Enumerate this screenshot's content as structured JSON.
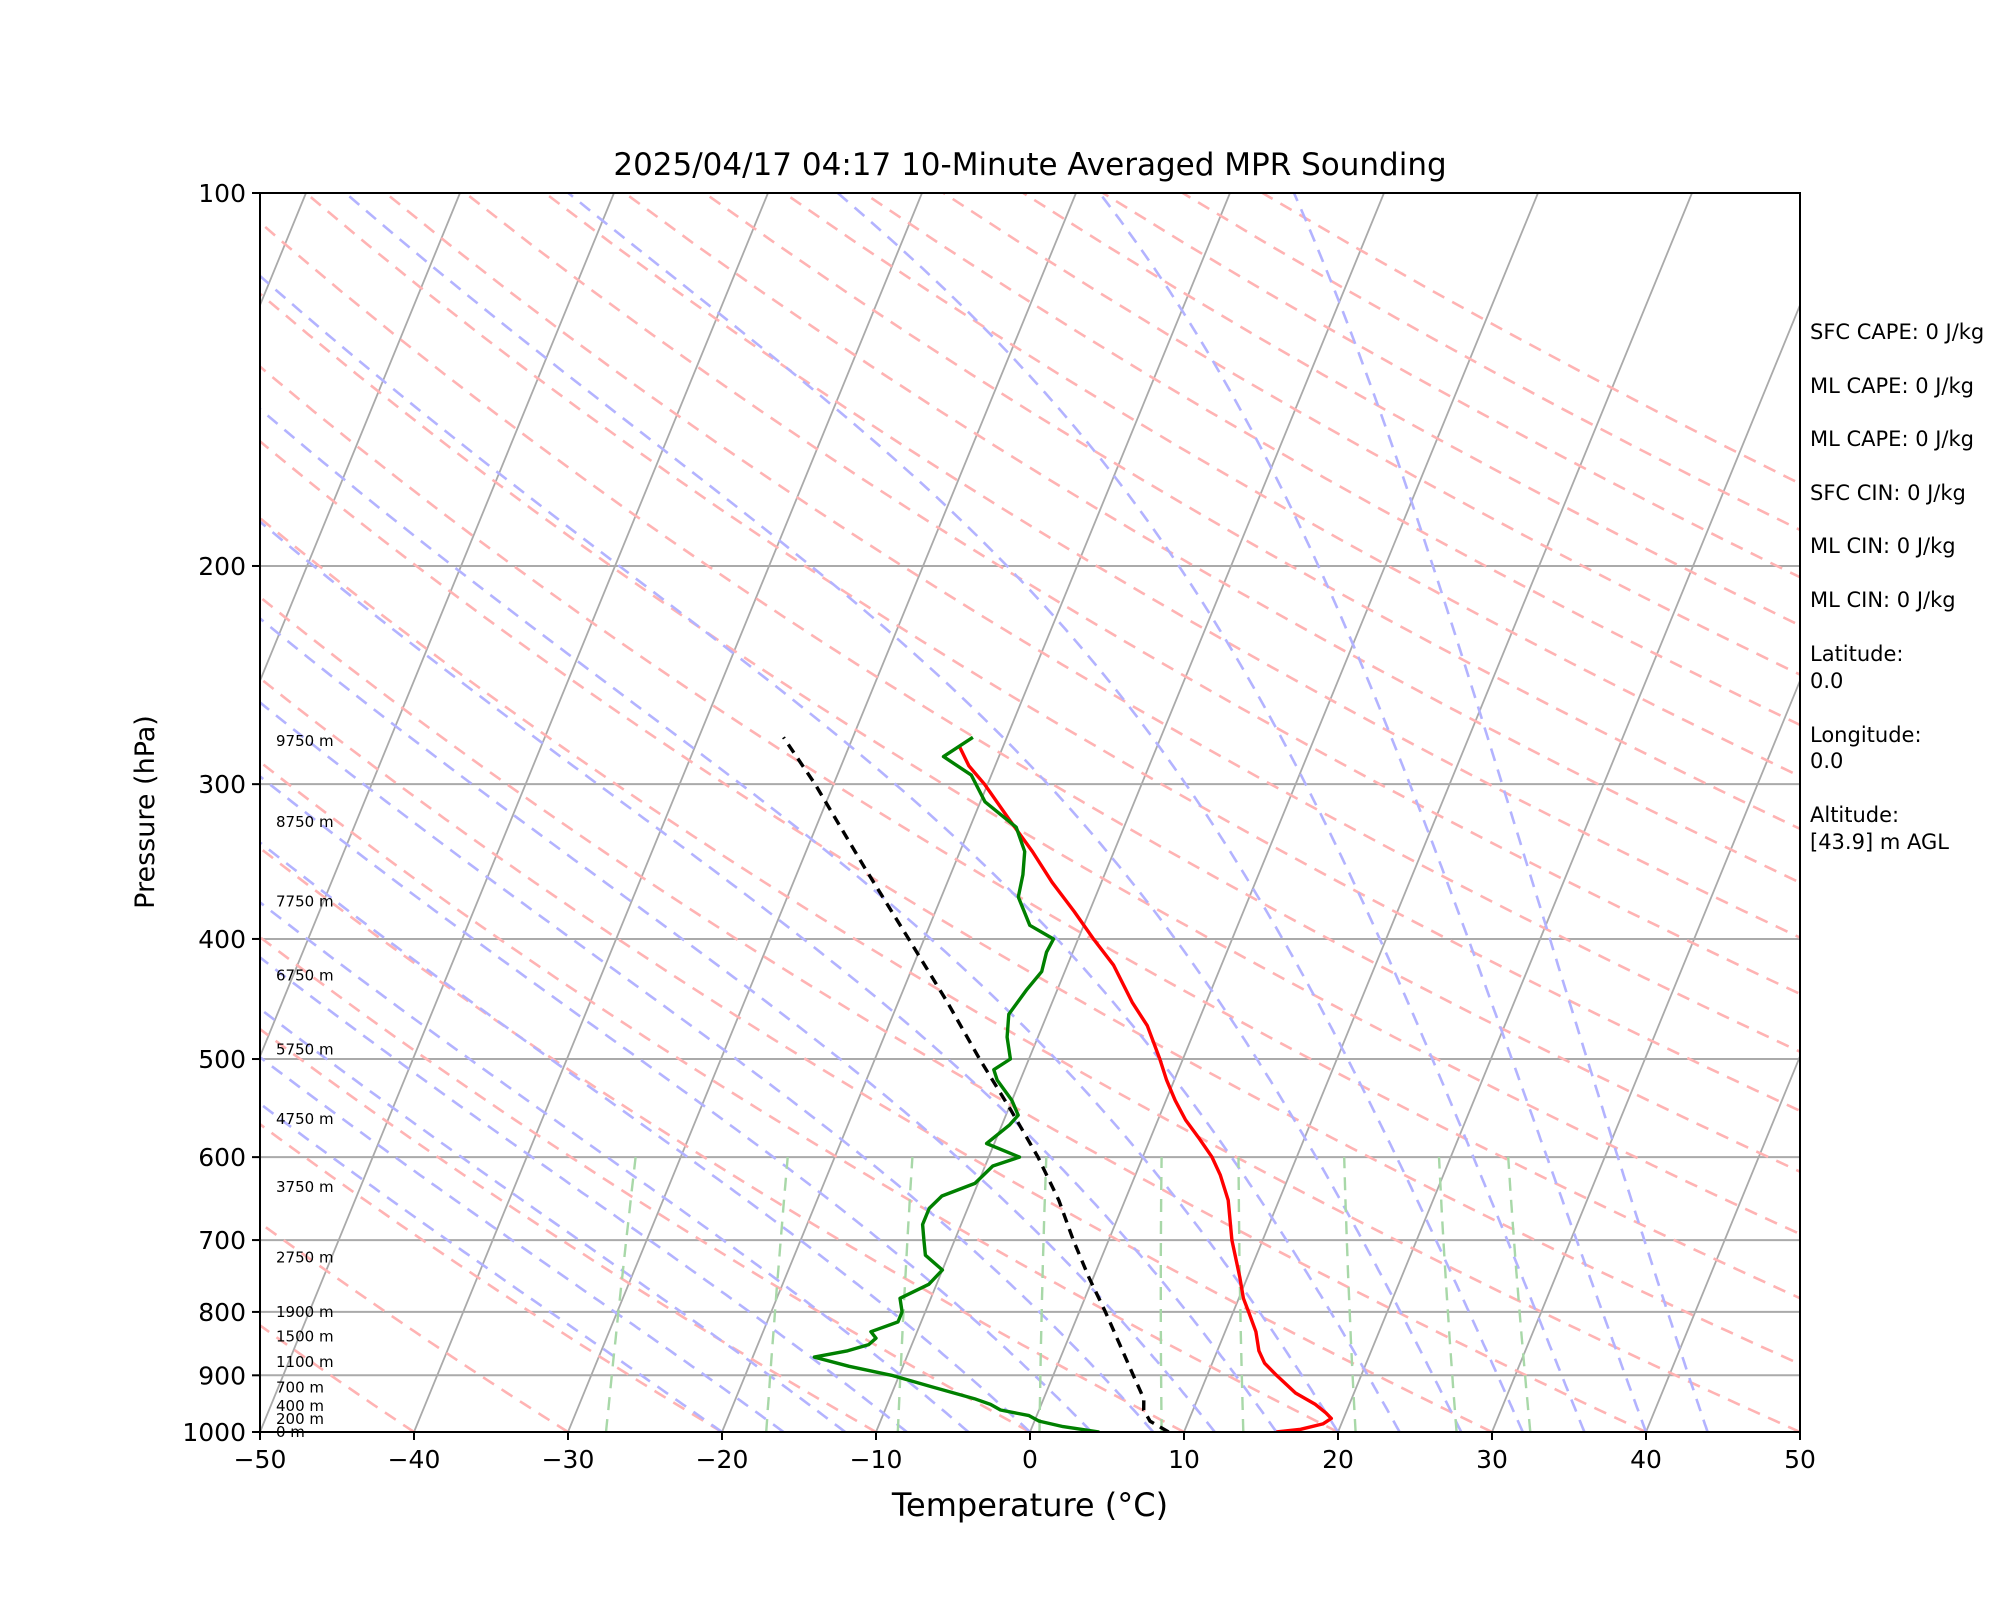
{
  "chart_data": {
    "type": "skew-t",
    "title": "2025/04/17 04:17 10-Minute Averaged MPR Sounding",
    "xlabel": "Temperature (°C)",
    "ylabel": "Pressure (hPa)",
    "xlim": [
      -50,
      50
    ],
    "ylim": [
      1000,
      100
    ],
    "y_scale": "log",
    "x_ticks": [
      "−50",
      "−40",
      "−30",
      "−20",
      "−10",
      "0",
      "10",
      "20",
      "30",
      "40",
      "50"
    ],
    "y_ticks": [
      100,
      200,
      300,
      400,
      500,
      600,
      700,
      800,
      900,
      1000
    ],
    "grid": true,
    "colors": {
      "temperature": "#ff0000",
      "dewpoint": "#008000",
      "parcel": "#000000",
      "isotherm": "#aaaaaa",
      "dry_adiabat": "#ffb3b3",
      "moist_adiabat": "#b3b3ff",
      "mixing_ratio": "#a8d8a8"
    },
    "series": [
      {
        "key": "temperature",
        "points": [
          [
            1000,
            16
          ],
          [
            995,
            17.5
          ],
          [
            985,
            18.8
          ],
          [
            975,
            19.2
          ],
          [
            965,
            18.7
          ],
          [
            950,
            17.8
          ],
          [
            930,
            16.2
          ],
          [
            900,
            14.5
          ],
          [
            880,
            13.4
          ],
          [
            860,
            12.7
          ],
          [
            830,
            12.0
          ],
          [
            800,
            11.0
          ],
          [
            780,
            10.3
          ],
          [
            750,
            9.5
          ],
          [
            700,
            8.0
          ],
          [
            650,
            6.7
          ],
          [
            620,
            5.5
          ],
          [
            600,
            4.5
          ],
          [
            580,
            3.2
          ],
          [
            560,
            1.8
          ],
          [
            540,
            0.6
          ],
          [
            520,
            -0.5
          ],
          [
            500,
            -1.5
          ],
          [
            470,
            -3.2
          ],
          [
            450,
            -4.8
          ],
          [
            420,
            -7.0
          ],
          [
            400,
            -9.0
          ],
          [
            380,
            -11.0
          ],
          [
            360,
            -13.2
          ],
          [
            340,
            -15.3
          ],
          [
            320,
            -17.7
          ],
          [
            300,
            -20.2
          ],
          [
            290,
            -21.7
          ],
          [
            280,
            -22.8
          ]
        ]
      },
      {
        "key": "dewpoint",
        "points": [
          [
            1000,
            4.5
          ],
          [
            990,
            2.0
          ],
          [
            980,
            0.3
          ],
          [
            970,
            -0.5
          ],
          [
            960,
            -2.5
          ],
          [
            950,
            -3.3
          ],
          [
            940,
            -4.5
          ],
          [
            920,
            -7.5
          ],
          [
            900,
            -10.5
          ],
          [
            885,
            -13.5
          ],
          [
            870,
            -16.0
          ],
          [
            860,
            -14.0
          ],
          [
            850,
            -12.8
          ],
          [
            840,
            -12.5
          ],
          [
            830,
            -13.0
          ],
          [
            815,
            -11.5
          ],
          [
            800,
            -11.5
          ],
          [
            780,
            -12.0
          ],
          [
            760,
            -10.5
          ],
          [
            740,
            -10.0
          ],
          [
            720,
            -11.5
          ],
          [
            700,
            -12.0
          ],
          [
            680,
            -12.5
          ],
          [
            660,
            -12.5
          ],
          [
            645,
            -12.0
          ],
          [
            630,
            -10.2
          ],
          [
            610,
            -9.5
          ],
          [
            600,
            -8.0
          ],
          [
            585,
            -10.5
          ],
          [
            565,
            -9.5
          ],
          [
            555,
            -9.2
          ],
          [
            540,
            -10.0
          ],
          [
            520,
            -11.5
          ],
          [
            510,
            -12.0
          ],
          [
            500,
            -11.2
          ],
          [
            480,
            -12.0
          ],
          [
            460,
            -12.5
          ],
          [
            440,
            -12.0
          ],
          [
            425,
            -11.5
          ],
          [
            410,
            -11.7
          ],
          [
            400,
            -11.6
          ],
          [
            390,
            -13.5
          ],
          [
            370,
            -15.0
          ],
          [
            355,
            -15.3
          ],
          [
            340,
            -15.8
          ],
          [
            325,
            -17.0
          ],
          [
            310,
            -19.7
          ],
          [
            295,
            -21.3
          ],
          [
            285,
            -23.6
          ],
          [
            275,
            -22.2
          ]
        ]
      },
      {
        "key": "parcel",
        "points": [
          [
            1000,
            9.0
          ],
          [
            980,
            7.5
          ],
          [
            960,
            6.8
          ],
          [
            940,
            6.5
          ],
          [
            900,
            5.2
          ],
          [
            850,
            3.5
          ],
          [
            800,
            1.7
          ],
          [
            750,
            -0.3
          ],
          [
            700,
            -2.3
          ],
          [
            650,
            -4.3
          ],
          [
            600,
            -6.8
          ],
          [
            550,
            -9.8
          ],
          [
            500,
            -13.2
          ],
          [
            450,
            -16.8
          ],
          [
            400,
            -21.0
          ],
          [
            350,
            -25.8
          ],
          [
            300,
            -31.2
          ],
          [
            275,
            -34.5
          ]
        ]
      }
    ],
    "height_labels": [
      {
        "p": 1000,
        "text": "0 m"
      },
      {
        "p": 976,
        "text": "200 m"
      },
      {
        "p": 953,
        "text": "400 m"
      },
      {
        "p": 921,
        "text": "700 m"
      },
      {
        "p": 878,
        "text": "1100 m"
      },
      {
        "p": 837,
        "text": "1500 m"
      },
      {
        "p": 800,
        "text": "1900 m"
      },
      {
        "p": 723,
        "text": "2750 m"
      },
      {
        "p": 634,
        "text": "3750 m"
      },
      {
        "p": 559,
        "text": "4750 m"
      },
      {
        "p": 491,
        "text": "5750 m"
      },
      {
        "p": 428,
        "text": "6750 m"
      },
      {
        "p": 373,
        "text": "7750 m"
      },
      {
        "p": 322,
        "text": "8750 m"
      },
      {
        "p": 277,
        "text": "9750 m"
      }
    ]
  },
  "info": {
    "sfc_cape": "SFC CAPE: 0 J/kg",
    "ml_cape_1": "ML CAPE: 0 J/kg",
    "ml_cape_2": "ML CAPE: 0 J/kg",
    "sfc_cin": "SFC CIN: 0 J/kg",
    "ml_cin_1": "ML CIN: 0 J/kg",
    "ml_cin_2": "ML CIN: 0 J/kg",
    "latitude_label": "Latitude:",
    "latitude_value": "0.0",
    "longitude_label": "Longitude:",
    "longitude_value": "0.0",
    "altitude_label": "Altitude:",
    "altitude_value": "[43.9] m AGL"
  }
}
